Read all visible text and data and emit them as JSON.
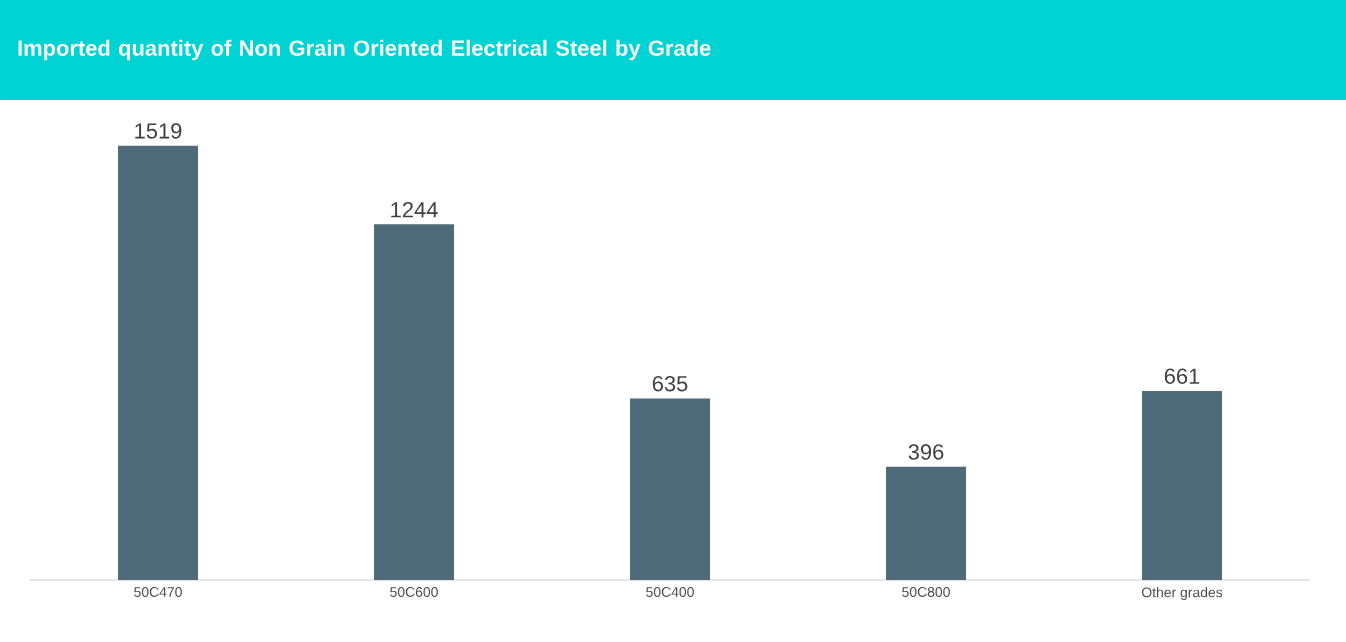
{
  "chart_data": {
    "type": "bar",
    "title": "Imported quantity of Non Grain Oriented Electrical  Steel by Grade",
    "categories": [
      "50C470",
      "50C600",
      "50C400",
      "50C800",
      "Other grades"
    ],
    "values": [
      1519,
      1244,
      635,
      396,
      661
    ],
    "color": "#4f6a78",
    "data_labels": true
  }
}
